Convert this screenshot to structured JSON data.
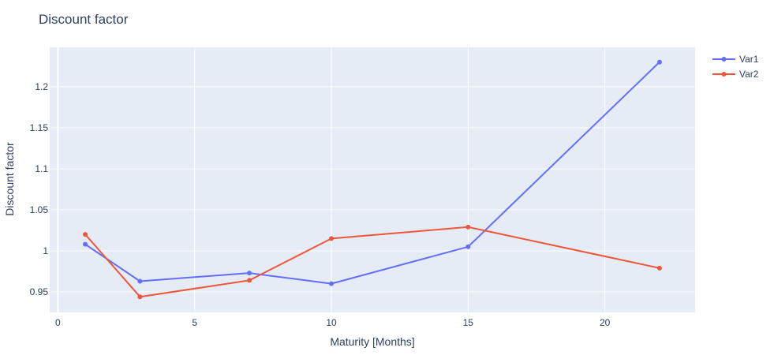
{
  "chart_data": {
    "type": "line",
    "title": "Discount factor",
    "xlabel": "Maturity [Months]",
    "ylabel": "Discount factor",
    "xlim": [
      -0.3,
      23.3
    ],
    "ylim": [
      0.925,
      1.248
    ],
    "x_ticks": [
      0,
      5,
      10,
      15,
      20
    ],
    "x_tick_labels": [
      "0",
      "5",
      "10",
      "15",
      "20"
    ],
    "y_ticks": [
      0.95,
      1.0,
      1.05,
      1.1,
      1.15,
      1.2
    ],
    "y_tick_labels": [
      "0.95",
      "1",
      "1.05",
      "1.1",
      "1.15",
      "1.2"
    ],
    "grid": true,
    "legend_position": "top-right",
    "series": [
      {
        "name": "Var1",
        "color": "#636efa",
        "x": [
          1,
          3,
          7,
          10,
          15,
          22
        ],
        "y": [
          1.008,
          0.963,
          0.973,
          0.96,
          1.005,
          1.23
        ]
      },
      {
        "name": "Var2",
        "color": "#ef553b",
        "x": [
          1,
          3,
          7,
          10,
          15,
          22
        ],
        "y": [
          1.02,
          0.944,
          0.964,
          1.015,
          1.029,
          0.979
        ]
      }
    ],
    "colors": {
      "plot_background": "#e5ecf6",
      "grid": "#ffffff",
      "text": "#2a3f5f"
    }
  }
}
